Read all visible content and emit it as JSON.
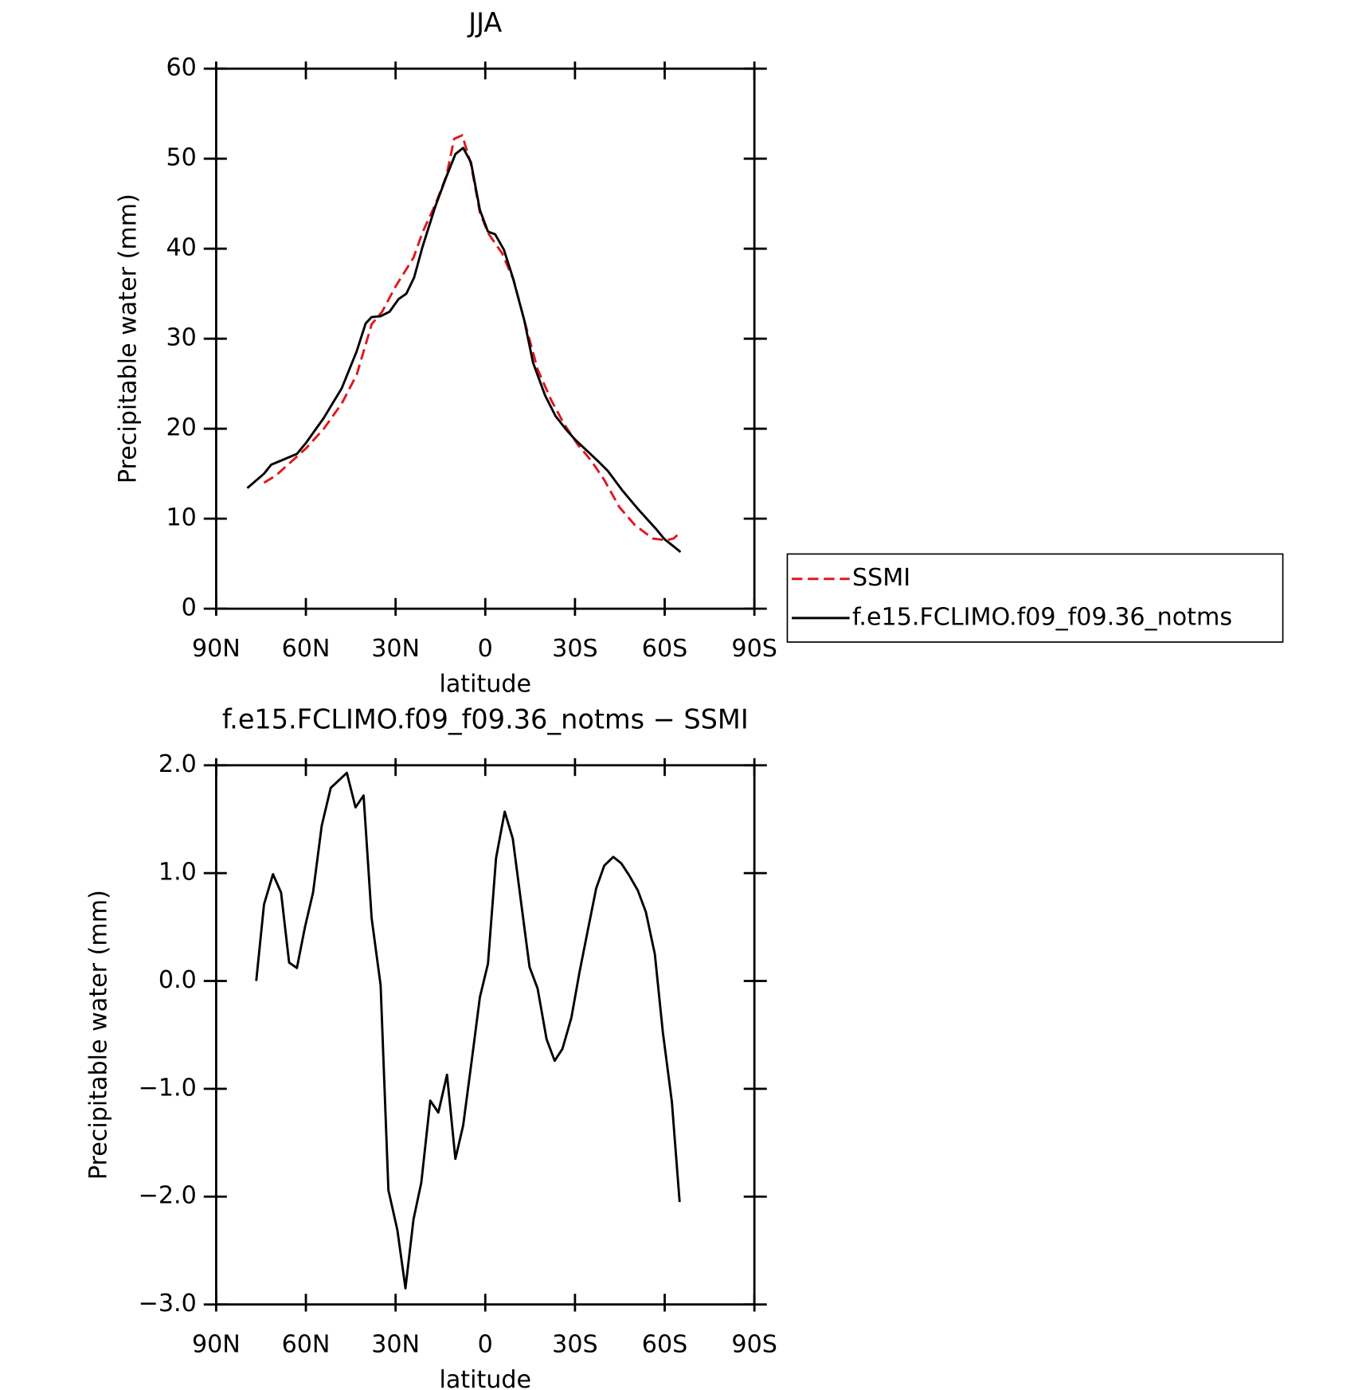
{
  "chart_data": [
    {
      "type": "line",
      "title": "JJA",
      "xlabel": "latitude",
      "ylabel": "Precipitable water (mm)",
      "xlim": [
        90,
        -90
      ],
      "xticks": [
        {
          "value": 90,
          "label": "90N"
        },
        {
          "value": 60,
          "label": "60N"
        },
        {
          "value": 30,
          "label": "30N"
        },
        0,
        {
          "value": -30,
          "label": "30S"
        },
        {
          "value": -60,
          "label": "60S"
        },
        {
          "value": -90,
          "label": "90S"
        }
      ],
      "ylim": [
        0,
        60
      ],
      "yticks": [
        0,
        10,
        20,
        30,
        40,
        50,
        60
      ],
      "legend_position": "right",
      "series": [
        {
          "name": "SSMI",
          "color": "#e0161b",
          "line_style": "dashed",
          "x": [
            74,
            70,
            64,
            60,
            54,
            48,
            43,
            38,
            34.5,
            30,
            24,
            21,
            16.6,
            13,
            10.4,
            7.7,
            4.8,
            1.8,
            -1,
            -5.6,
            -9.5,
            -13,
            -17.5,
            -22,
            -26.4,
            -31,
            -35.3,
            -39.8,
            -44.8,
            -50,
            -56,
            -60.5,
            -63,
            -65.3
          ],
          "values": [
            14,
            14.8,
            16.6,
            17.8,
            20,
            22.8,
            26,
            31.6,
            33,
            35.8,
            39,
            41.8,
            45,
            48.1,
            52.2,
            52.6,
            49.4,
            44,
            41.7,
            39.5,
            36.5,
            32.1,
            26.6,
            23.2,
            20.5,
            18.2,
            16.5,
            14.3,
            11.3,
            9.3,
            7.8,
            7.6,
            7.8,
            8.5
          ]
        },
        {
          "name": "f.e15.FCLIMO.f09_f09.36_notms",
          "color": "#000000",
          "line_style": "solid",
          "x": [
            79.6,
            74,
            71.6,
            68,
            63,
            60,
            54,
            48,
            43,
            40,
            38,
            35,
            32,
            29,
            26.4,
            23.8,
            21,
            16.6,
            13,
            10,
            7.4,
            4.8,
            1.8,
            -0.9,
            -3.3,
            -6.2,
            -9.2,
            -13,
            -16,
            -20,
            -23.5,
            -27.3,
            -30.3,
            -34.5,
            -38.3,
            -41,
            -45.7,
            -51,
            -57,
            -60,
            -62.7,
            -65.3
          ],
          "values": [
            13.4,
            15,
            16,
            16.5,
            17.2,
            18.4,
            21.2,
            24.5,
            28.6,
            31.7,
            32.4,
            32.5,
            33,
            34.4,
            35,
            36.8,
            40.2,
            44.8,
            48,
            50.5,
            51.2,
            49.6,
            44.3,
            41.9,
            41.6,
            39.9,
            36.8,
            32.1,
            27.3,
            23.7,
            21.4,
            19.8,
            18.7,
            17.4,
            16.2,
            15.3,
            13.2,
            11.1,
            8.9,
            7.7,
            7,
            6.3
          ]
        }
      ]
    },
    {
      "type": "line",
      "title": "f.e15.FCLIMO.f09_f09.36_notms − SSMI",
      "xlabel": "latitude",
      "ylabel": "Precipitable water (mm)",
      "xlim": [
        90,
        -90
      ],
      "xticks": [
        {
          "value": 90,
          "label": "90N"
        },
        {
          "value": 60,
          "label": "60N"
        },
        {
          "value": 30,
          "label": "30N"
        },
        0,
        {
          "value": -30,
          "label": "30S"
        },
        {
          "value": -60,
          "label": "60S"
        },
        {
          "value": -90,
          "label": "90S"
        }
      ],
      "ylim": [
        -3,
        2
      ],
      "yticks": [
        {
          "value": 2,
          "label": "2.0"
        },
        {
          "value": 1,
          "label": "1.0"
        },
        {
          "value": 0,
          "label": "0.0"
        },
        {
          "value": -1,
          "label": "−1.0"
        },
        {
          "value": -2,
          "label": "−2.0"
        },
        {
          "value": -3,
          "label": "−3.0"
        }
      ],
      "color": "#000000",
      "x": [
        76.6,
        74,
        71,
        68.3,
        65.6,
        63,
        60.3,
        57.6,
        54.7,
        51.7,
        49,
        46.3,
        43.4,
        40.7,
        38,
        35,
        32.4,
        29.4,
        26.7,
        24,
        21.4,
        18.4,
        15.7,
        12.8,
        10,
        7.4,
        4.5,
        1.8,
        -0.9,
        -3.6,
        -6.5,
        -9.2,
        -12.2,
        -14.8,
        -17.5,
        -20.5,
        -23.2,
        -25.8,
        -28.8,
        -31.5,
        -34.5,
        -37.1,
        -39.8,
        -42.8,
        -45.5,
        -48.1,
        -51,
        -53.7,
        -56.7,
        -59.4,
        -62.4,
        -65
      ],
      "values": [
        0,
        0.71,
        0.99,
        0.82,
        0.17,
        0.12,
        0.5,
        0.82,
        1.44,
        1.79,
        1.86,
        1.93,
        1.61,
        1.72,
        0.58,
        -0.04,
        -1.94,
        -2.31,
        -2.85,
        -2.21,
        -1.87,
        -1.11,
        -1.22,
        -0.87,
        -1.65,
        -1.34,
        -0.73,
        -0.15,
        0.16,
        1.14,
        1.57,
        1.32,
        0.68,
        0.13,
        -0.07,
        -0.54,
        -0.74,
        -0.63,
        -0.34,
        0.08,
        0.5,
        0.86,
        1.07,
        1.15,
        1.09,
        0.98,
        0.84,
        0.64,
        0.25,
        -0.48,
        -1.12,
        -2.05
      ]
    }
  ]
}
